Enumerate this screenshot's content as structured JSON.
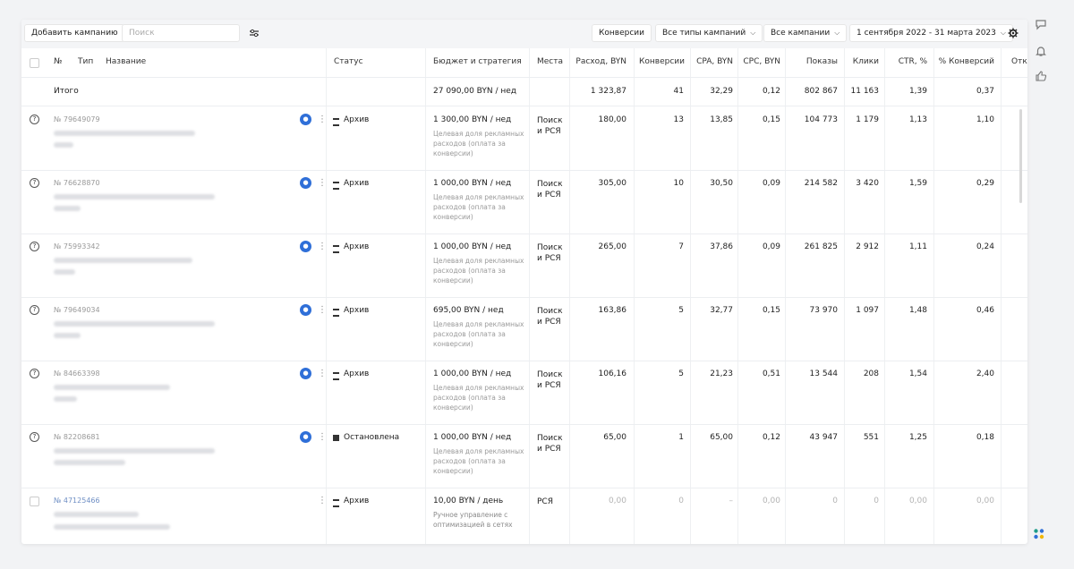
{
  "toolbar": {
    "add_campaign": "Добавить кампанию",
    "search_placeholder": "Поиск",
    "conversions": "Конверсии",
    "campaign_types": "Все типы кампаний",
    "campaigns": "Все кампании",
    "date_range": "1 сентября 2022 - 31 марта 2023"
  },
  "columns": {
    "num": "№",
    "type": "Тип",
    "name": "Название",
    "status": "Статус",
    "budget": "Бюджет и стратегия",
    "places": "Места",
    "spend": "Расход, BYN",
    "conversions": "Конверсии",
    "cpa": "CPA, BYN",
    "cpc": "CPC, BYN",
    "impressions": "Показы",
    "clicks": "Клики",
    "ctr": "CTR, %",
    "conv_rate": "% Конверсий",
    "more": "Отк"
  },
  "totals": {
    "label": "Итого",
    "budget": "27 090,00 BYN / нед",
    "spend": "1 323,87",
    "conversions": "41",
    "cpa": "32,29",
    "cpc": "0,12",
    "impressions": "802 867",
    "clicks": "11 163",
    "ctr": "1,39",
    "conv_rate": "0,37"
  },
  "rows": [
    {
      "num": "№ 79649079",
      "status": "Архив",
      "budget": "1 300,00 BYN / нед",
      "strategy": "Целевая доля рекламных расходов (оплата за конверсии)",
      "places1": "Поиск",
      "places2": "и РСЯ",
      "spend": "180,00",
      "conversions": "13",
      "cpa": "13,85",
      "cpc": "0,15",
      "impressions": "104 773",
      "clicks": "1 179",
      "ctr": "1,13",
      "conv_rate": "1,10"
    },
    {
      "num": "№ 76628870",
      "status": "Архив",
      "budget": "1 000,00 BYN / нед",
      "strategy": "Целевая доля рекламных расходов (оплата за конверсии)",
      "places1": "Поиск",
      "places2": "и РСЯ",
      "spend": "305,00",
      "conversions": "10",
      "cpa": "30,50",
      "cpc": "0,09",
      "impressions": "214 582",
      "clicks": "3 420",
      "ctr": "1,59",
      "conv_rate": "0,29"
    },
    {
      "num": "№ 75993342",
      "status": "Архив",
      "budget": "1 000,00 BYN / нед",
      "strategy": "Целевая доля рекламных расходов (оплата за конверсии)",
      "places1": "Поиск",
      "places2": "и РСЯ",
      "spend": "265,00",
      "conversions": "7",
      "cpa": "37,86",
      "cpc": "0,09",
      "impressions": "261 825",
      "clicks": "2 912",
      "ctr": "1,11",
      "conv_rate": "0,24"
    },
    {
      "num": "№ 79649034",
      "status": "Архив",
      "budget": "695,00 BYN / нед",
      "strategy": "Целевая доля рекламных расходов (оплата за конверсии)",
      "places1": "Поиск",
      "places2": "и РСЯ",
      "spend": "163,86",
      "conversions": "5",
      "cpa": "32,77",
      "cpc": "0,15",
      "impressions": "73 970",
      "clicks": "1 097",
      "ctr": "1,48",
      "conv_rate": "0,46"
    },
    {
      "num": "№ 84663398",
      "status": "Архив",
      "budget": "1 000,00 BYN / нед",
      "strategy": "Целевая доля рекламных расходов (оплата за конверсии)",
      "places1": "Поиск",
      "places2": "и РСЯ",
      "spend": "106,16",
      "conversions": "5",
      "cpa": "21,23",
      "cpc": "0,51",
      "impressions": "13 544",
      "clicks": "208",
      "ctr": "1,54",
      "conv_rate": "2,40"
    },
    {
      "num": "№ 82208681",
      "status": "Остановлена",
      "budget": "1 000,00 BYN / нед",
      "strategy": "Целевая доля рекламных расходов (оплата за конверсии)",
      "places1": "Поиск",
      "places2": "и РСЯ",
      "spend": "65,00",
      "conversions": "1",
      "cpa": "65,00",
      "cpc": "0,12",
      "impressions": "43 947",
      "clicks": "551",
      "ctr": "1,25",
      "conv_rate": "0,18"
    },
    {
      "num": "№ 47125466",
      "status": "Архив",
      "budget": "10,00 BYN / день",
      "strategy": "Ручное управление с оптимизацией в сетях",
      "places1": "РСЯ",
      "places2": "",
      "spend": "0,00",
      "conversions": "0",
      "cpa": "–",
      "cpc": "0,00",
      "impressions": "0",
      "clicks": "0",
      "ctr": "0,00",
      "conv_rate": "0,00"
    }
  ]
}
